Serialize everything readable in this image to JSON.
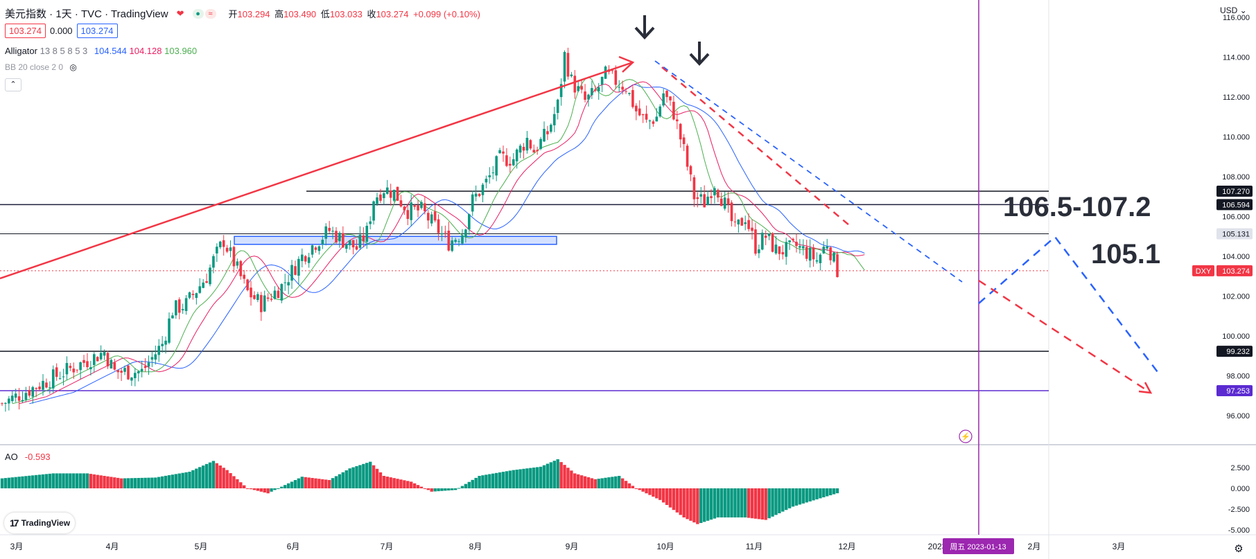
{
  "header": {
    "title": "美元指数 · 1天 · TVC · TradingView",
    "ohlc": [
      {
        "label": "开",
        "value": "103.294"
      },
      {
        "label": "高",
        "value": "103.490"
      },
      {
        "label": "低",
        "value": "103.033"
      },
      {
        "label": "收",
        "value": "103.274"
      },
      {
        "label": "",
        "value": "+0.099 (+0.10%)"
      }
    ],
    "sell_price": "103.274",
    "spread": "0.000",
    "buy_price": "103.274",
    "heart_icon": "heart-icon",
    "indicator_icon": "approx-icon"
  },
  "indicators": {
    "alligator_label": "Alligator",
    "alligator_params": "13 8 5 8 5 3",
    "alligator_values": [
      "104.544",
      "104.128",
      "103.960"
    ],
    "alligator_colors": [
      "#2962ff",
      "#e91e63",
      "#4caf50"
    ],
    "bb_label": "BB 20 close 2 0",
    "ao_label": "AO",
    "ao_value": "-0.593"
  },
  "currency": "USD",
  "logo_text": "TradingView",
  "colors": {
    "up": "#089981",
    "down": "#f23645",
    "jaw": "#2962ff",
    "teeth": "#e91e63",
    "lips": "#4caf50",
    "arrow_red": "#f23645",
    "arrow_blue": "#2962ff",
    "vline": "#9c27b0"
  },
  "annotations": {
    "zone_label": "106.5-107.2",
    "level_label": "105.1"
  },
  "date_badge": "周五 2023-01-13",
  "chart_data": {
    "type": "candlestick",
    "symbol": "DXY",
    "y_range": [
      95.5,
      116.8
    ],
    "y_ticks": [
      "116.000",
      "114.000",
      "112.000",
      "110.000",
      "108.000",
      "106.000",
      "104.000",
      "102.000",
      "100.000",
      "98.000",
      "96.000"
    ],
    "x_labels": [
      "3月",
      "4月",
      "5月",
      "6月",
      "7月",
      "8月",
      "9月",
      "10月",
      "11月",
      "12月",
      "2023",
      "2月",
      "3月"
    ],
    "price_tags": [
      {
        "value": 107.27,
        "text": "107.270",
        "style": "dark"
      },
      {
        "value": 106.594,
        "text": "106.594",
        "style": "dark"
      },
      {
        "value": 105.131,
        "text": "105.131",
        "style": "gray"
      },
      {
        "value": 103.274,
        "text": "103.274",
        "style": "red",
        "symbol": "DXY"
      },
      {
        "value": 99.232,
        "text": "99.232",
        "style": "dark"
      },
      {
        "value": 97.253,
        "text": "97.253",
        "style": "purple"
      }
    ],
    "support_zone": [
      104.6,
      105.0
    ],
    "ao_range": [
      -5.2,
      4.2
    ],
    "ao_ticks": [
      "2.500",
      "0.000",
      "-2.500",
      "-5.000"
    ],
    "price_path": [
      [
        0,
        96.6
      ],
      [
        16,
        98.0
      ],
      [
        30,
        99.2
      ],
      [
        33,
        98.2
      ],
      [
        41,
        98.2
      ],
      [
        47,
        99.6
      ],
      [
        50,
        101.3
      ],
      [
        54,
        101.6
      ],
      [
        60,
        103.0
      ],
      [
        62,
        103.8
      ],
      [
        65,
        104.8
      ],
      [
        68,
        103.7
      ],
      [
        72,
        102.2
      ],
      [
        76,
        101.6
      ],
      [
        82,
        102.5
      ],
      [
        88,
        104.0
      ],
      [
        92,
        104.7
      ],
      [
        96,
        105.3
      ],
      [
        100,
        104.8
      ],
      [
        104,
        104.4
      ],
      [
        107,
        105.2
      ],
      [
        109,
        106.9
      ],
      [
        112,
        107.4
      ],
      [
        115,
        107.2
      ],
      [
        119,
        106.3
      ],
      [
        123,
        106.3
      ],
      [
        127,
        105.5
      ],
      [
        131,
        104.7
      ],
      [
        135,
        105.2
      ],
      [
        138,
        106.8
      ],
      [
        142,
        107.7
      ],
      [
        146,
        108.9
      ],
      [
        150,
        108.9
      ],
      [
        154,
        109.9
      ],
      [
        156,
        109.3
      ],
      [
        160,
        110.2
      ],
      [
        163,
        111.6
      ],
      [
        165,
        114.1
      ],
      [
        167,
        112.8
      ],
      [
        171,
        111.8
      ],
      [
        174,
        112.2
      ],
      [
        177,
        113.1
      ],
      [
        180,
        112.8
      ],
      [
        183,
        112.5
      ],
      [
        186,
        111.3
      ],
      [
        189,
        110.7
      ],
      [
        192,
        111.0
      ],
      [
        194,
        112.2
      ],
      [
        197,
        111.2
      ],
      [
        200,
        109.3
      ],
      [
        203,
        107.0
      ],
      [
        206,
        106.7
      ],
      [
        209,
        107.7
      ],
      [
        212,
        106.6
      ],
      [
        215,
        105.3
      ],
      [
        218,
        106.0
      ],
      [
        221,
        104.5
      ],
      [
        224,
        105.0
      ],
      [
        227,
        104.3
      ],
      [
        230,
        104.3
      ],
      [
        233,
        104.5
      ],
      [
        236,
        104.2
      ],
      [
        239,
        103.8
      ],
      [
        242,
        104.7
      ],
      [
        245,
        103.3
      ]
    ],
    "ao_path": [
      [
        0,
        1.2
      ],
      [
        15,
        1.8
      ],
      [
        25,
        1.8
      ],
      [
        35,
        1.2
      ],
      [
        45,
        1.3
      ],
      [
        55,
        2.0
      ],
      [
        62,
        3.3
      ],
      [
        66,
        2.2
      ],
      [
        72,
        0.0
      ],
      [
        78,
        -0.6
      ],
      [
        82,
        0.2
      ],
      [
        88,
        1.4
      ],
      [
        96,
        1.0
      ],
      [
        102,
        2.4
      ],
      [
        108,
        3.2
      ],
      [
        112,
        1.5
      ],
      [
        120,
        0.8
      ],
      [
        126,
        -0.4
      ],
      [
        133,
        -0.2
      ],
      [
        140,
        1.5
      ],
      [
        150,
        2.2
      ],
      [
        158,
        2.6
      ],
      [
        163,
        3.5
      ],
      [
        168,
        1.8
      ],
      [
        174,
        1.1
      ],
      [
        181,
        1.5
      ],
      [
        186,
        0.0
      ],
      [
        193,
        -1.4
      ],
      [
        200,
        -3.5
      ],
      [
        204,
        -4.3
      ],
      [
        210,
        -3.5
      ],
      [
        218,
        -3.5
      ],
      [
        224,
        -3.8
      ],
      [
        232,
        -2.2
      ],
      [
        240,
        -1.2
      ],
      [
        245,
        -0.59
      ]
    ]
  }
}
